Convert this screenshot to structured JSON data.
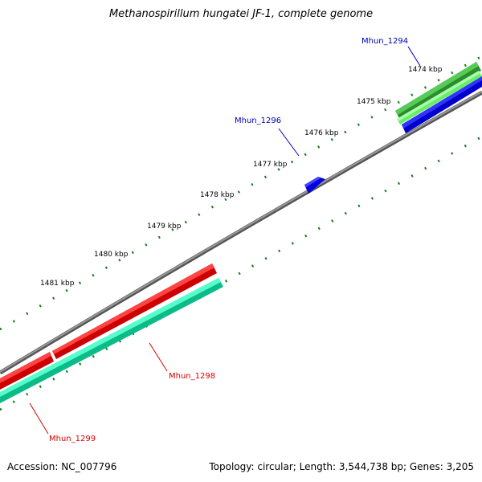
{
  "title": "Methanospirillum hungatei JF-1, complete genome",
  "footer": {
    "accession": "Accession: NC_007796",
    "summary": "Topology: circular; Length: 3,544,738 bp; Genes: 3,205"
  },
  "ticks": [
    "1474 kbp",
    "1475 kbp",
    "1476 kbp",
    "1477 kbp",
    "1478 kbp",
    "1479 kbp",
    "1480 kbp",
    "1481 kbp"
  ],
  "genes": [
    {
      "label": "Mhun_1294",
      "color": "#0000bb"
    },
    {
      "label": "Mhun_1296",
      "color": "#0000bb"
    },
    {
      "label": "Mhun_1298",
      "color": "#dd0000"
    },
    {
      "label": "Mhun_1299",
      "color": "#dd0000"
    }
  ],
  "colors": {
    "backbone": "#7f7f7f",
    "tick": "#1a7a1a",
    "forward_cds": "#ee0000",
    "forward_rna": "#11dd99",
    "reverse_cds": "#0000ee",
    "green_feature": "#33bb33"
  }
}
